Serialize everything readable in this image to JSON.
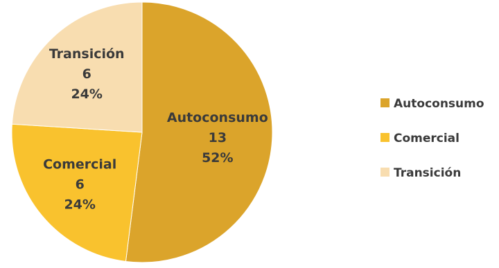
{
  "chart_data": {
    "type": "pie",
    "title": "",
    "slices": [
      {
        "label": "Autoconsumo",
        "value": 13,
        "percent": "52%",
        "color": "#DBA42B"
      },
      {
        "label": "Comercial",
        "value": 6,
        "percent": "24%",
        "color": "#F9C22E"
      },
      {
        "label": "Transición",
        "value": 6,
        "percent": "24%",
        "color": "#F8DDB0"
      }
    ],
    "legend": {
      "position": "right",
      "items": [
        "Autoconsumo",
        "Comercial",
        "Transición"
      ]
    },
    "data_labels": "category, value, percent"
  }
}
